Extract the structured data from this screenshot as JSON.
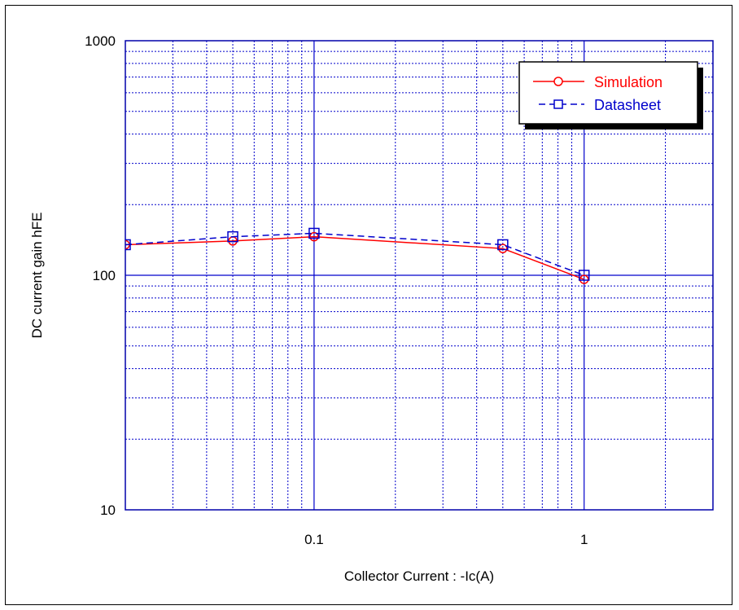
{
  "chart_data": {
    "type": "line",
    "title": "",
    "xlabel": "Collector Current : -Ic(A)",
    "ylabel": "DC current gain hFE",
    "xscale": "log",
    "yscale": "log",
    "xlim": [
      0.02,
      3
    ],
    "ylim": [
      10,
      1000
    ],
    "xticks": [
      {
        "value": 0.1,
        "label": "0.1"
      },
      {
        "value": 1,
        "label": "1"
      }
    ],
    "yticks": [
      {
        "value": 10,
        "label": "10"
      },
      {
        "value": 100,
        "label": "100"
      },
      {
        "value": 1000,
        "label": "1000"
      }
    ],
    "grid": true,
    "legend_position": "top-right",
    "series": [
      {
        "name": "Simulation",
        "color": "#ff0000",
        "marker": "circle",
        "line_style": "solid",
        "points": [
          {
            "x": 0.02,
            "y": 135
          },
          {
            "x": 0.05,
            "y": 140
          },
          {
            "x": 0.1,
            "y": 146
          },
          {
            "x": 0.5,
            "y": 130
          },
          {
            "x": 1,
            "y": 96
          }
        ]
      },
      {
        "name": "Datasheet",
        "color": "#0000cc",
        "marker": "square",
        "line_style": "dashed",
        "points": [
          {
            "x": 0.02,
            "y": 135
          },
          {
            "x": 0.05,
            "y": 146
          },
          {
            "x": 0.1,
            "y": 151
          },
          {
            "x": 0.5,
            "y": 135
          },
          {
            "x": 1,
            "y": 100
          }
        ]
      }
    ]
  }
}
